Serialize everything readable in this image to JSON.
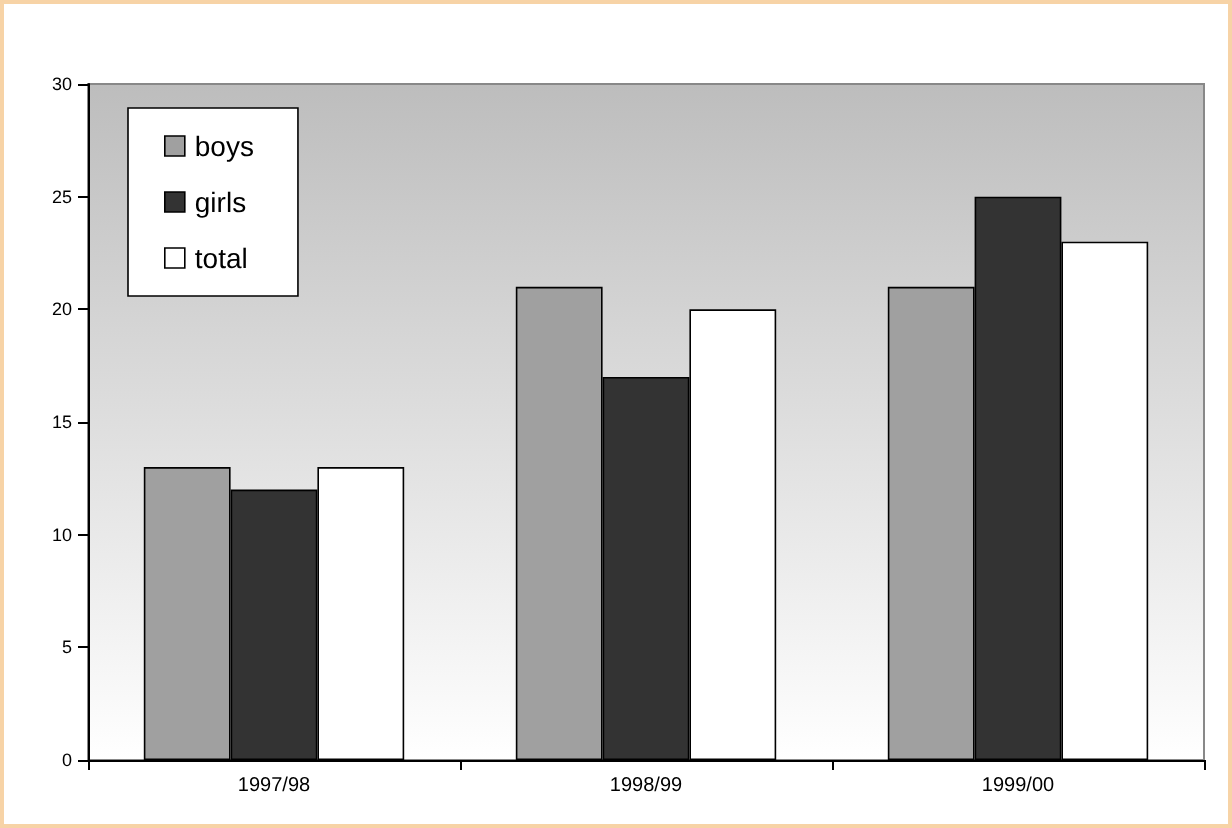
{
  "chart_data": {
    "type": "bar",
    "categories": [
      "1997/98",
      "1998/99",
      "1999/00"
    ],
    "series": [
      {
        "name": "boys",
        "color": "#a0a0a0",
        "values": [
          13,
          21,
          21
        ]
      },
      {
        "name": "girls",
        "color": "#333333",
        "values": [
          12,
          17,
          25
        ]
      },
      {
        "name": "total",
        "color": "#ffffff",
        "values": [
          13,
          20,
          23
        ]
      }
    ],
    "ylim": [
      0,
      30
    ],
    "yticks": [
      0,
      5,
      10,
      15,
      20,
      25,
      30
    ],
    "grid": false,
    "legend": "top left"
  }
}
